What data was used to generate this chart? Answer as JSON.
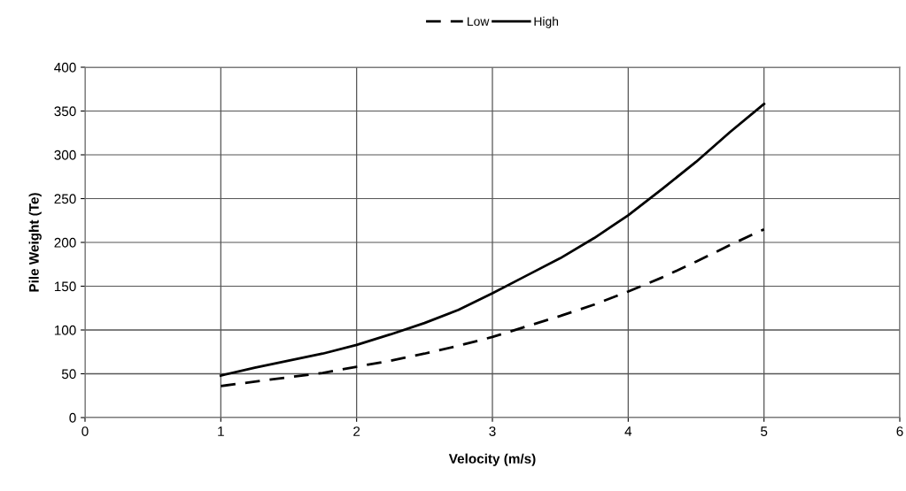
{
  "chart_data": {
    "type": "line",
    "xlabel": "Velocity (m/s)",
    "ylabel": "Pile Weight (Te)",
    "x": [
      1,
      1.25,
      1.5,
      1.75,
      2,
      2.25,
      2.5,
      2.75,
      3,
      3.25,
      3.5,
      3.75,
      4,
      4.25,
      4.5,
      4.75,
      5
    ],
    "series": [
      {
        "name": "Low",
        "color": "#000000",
        "line_style": "dashed",
        "values": [
          36,
          41,
          46,
          51,
          58,
          65,
          73,
          82,
          92,
          104,
          116,
          129,
          144,
          160,
          178,
          197,
          215
        ]
      },
      {
        "name": "High",
        "color": "#000000",
        "line_style": "solid",
        "values": [
          48,
          57,
          65,
          73,
          83,
          95,
          108,
          123,
          142,
          162,
          182,
          205,
          231,
          261,
          292,
          326,
          358
        ]
      }
    ],
    "xlim": [
      0,
      6
    ],
    "xticks": [
      0,
      1,
      2,
      3,
      4,
      5,
      6
    ],
    "ylim": [
      0,
      400
    ],
    "yticks": [
      0,
      50,
      100,
      150,
      200,
      250,
      300,
      350,
      400
    ],
    "grid": true,
    "legend": "top",
    "marker": "none"
  }
}
